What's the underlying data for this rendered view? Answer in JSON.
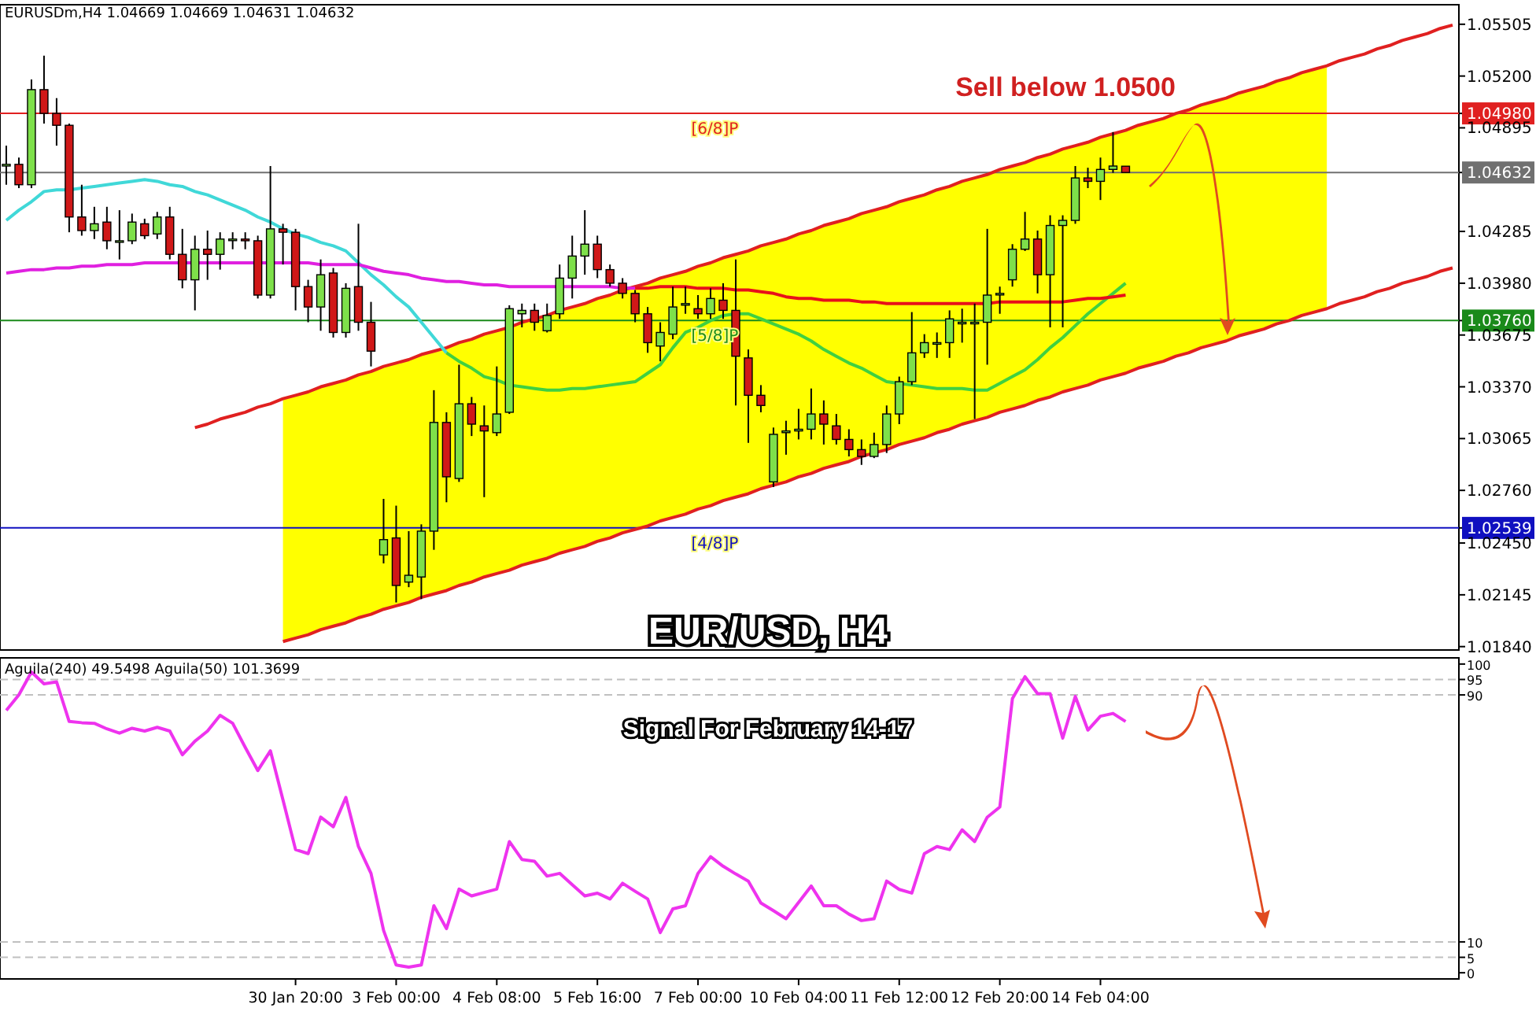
{
  "chart_data": [
    {
      "type": "candlestick",
      "annotations": [
        "EURUSDm,H4 1.04669 1.04669 1.04631 1.04632",
        "Sell below 1.0500"
      ],
      "categories": [
        null,
        null,
        null,
        null,
        null,
        null,
        null,
        null,
        null,
        null,
        null,
        null,
        null,
        null,
        null,
        null,
        null,
        null,
        null,
        null,
        null,
        null,
        null,
        null,
        null,
        null,
        null,
        null,
        null,
        null,
        null,
        null,
        null,
        null,
        null,
        null,
        null,
        null,
        null,
        null,
        null,
        null,
        null,
        null,
        null,
        null,
        null,
        null,
        null,
        null,
        null,
        null,
        null,
        null,
        null,
        null,
        null,
        null,
        null,
        null,
        null,
        null,
        null,
        null,
        null,
        null,
        null,
        null,
        null,
        null,
        null,
        null,
        null,
        null,
        null,
        null,
        null,
        null,
        null,
        null,
        null,
        null,
        null,
        null,
        null,
        null,
        null,
        null,
        null,
        null,
        null,
        null,
        null,
        null,
        null,
        null,
        null,
        null,
        null,
        null,
        null,
        null,
        null,
        null,
        null,
        null,
        null,
        null,
        null,
        null,
        null,
        null,
        null,
        null,
        null,
        null
      ],
      "ohlc": [
        [
          1.0467,
          1.0479,
          1.0456,
          1.0468
        ],
        [
          1.0468,
          1.0472,
          1.0454,
          1.0456
        ],
        [
          1.0456,
          1.0518,
          1.0454,
          1.0512
        ],
        [
          1.0512,
          1.0532,
          1.0492,
          1.0498
        ],
        [
          1.0498,
          1.0507,
          1.0479,
          1.0491
        ],
        [
          1.0491,
          1.0492,
          1.0428,
          1.0437
        ],
        [
          1.0437,
          1.0456,
          1.0426,
          1.0429
        ],
        [
          1.0429,
          1.0443,
          1.0424,
          1.0433
        ],
        [
          1.0434,
          1.0443,
          1.0418,
          1.0423
        ],
        [
          1.0423,
          1.0441,
          1.0412,
          1.0423
        ],
        [
          1.0423,
          1.0439,
          1.0421,
          1.0434
        ],
        [
          1.0433,
          1.0436,
          1.0424,
          1.0426
        ],
        [
          1.0427,
          1.044,
          1.0424,
          1.0437
        ],
        [
          1.0437,
          1.0443,
          1.0412,
          1.0415
        ],
        [
          1.0415,
          1.043,
          1.0395,
          1.04
        ],
        [
          1.04,
          1.0426,
          1.0382,
          1.0418
        ],
        [
          1.0418,
          1.0429,
          1.04,
          1.0415
        ],
        [
          1.0415,
          1.0428,
          1.0406,
          1.0424
        ],
        [
          1.0424,
          1.0428,
          1.0418,
          1.0424
        ],
        [
          1.0424,
          1.0428,
          1.0418,
          1.0423
        ],
        [
          1.0423,
          1.0426,
          1.0389,
          1.0391
        ],
        [
          1.0391,
          1.0467,
          1.0389,
          1.043
        ],
        [
          1.043,
          1.0433,
          1.0409,
          1.0428
        ],
        [
          1.0428,
          1.043,
          1.0382,
          1.0396
        ],
        [
          1.0396,
          1.04,
          1.0375,
          1.0384
        ],
        [
          1.0384,
          1.0412,
          1.037,
          1.0403
        ],
        [
          1.0404,
          1.0407,
          1.0366,
          1.0369
        ],
        [
          1.0369,
          1.0398,
          1.0366,
          1.0395
        ],
        [
          1.0396,
          1.0433,
          1.037,
          1.0375
        ],
        [
          1.0375,
          1.0387,
          1.0349,
          1.0358
        ],
        [
          1.0238,
          1.0271,
          1.0233,
          1.0247
        ],
        [
          1.0248,
          1.0267,
          1.021,
          1.022
        ],
        [
          1.0222,
          1.0252,
          1.0219,
          1.0226
        ],
        [
          1.0225,
          1.0256,
          1.0212,
          1.0252
        ],
        [
          1.0252,
          1.0335,
          1.0241,
          1.0316
        ],
        [
          1.0316,
          1.0322,
          1.0269,
          1.0284
        ],
        [
          1.0283,
          1.035,
          1.0281,
          1.0327
        ],
        [
          1.0327,
          1.0331,
          1.0308,
          1.0315
        ],
        [
          1.0314,
          1.0326,
          1.0272,
          1.0311
        ],
        [
          1.031,
          1.0349,
          1.0308,
          1.0321
        ],
        [
          1.0322,
          1.0385,
          1.0321,
          1.0383
        ],
        [
          1.038,
          1.0386,
          1.0372,
          1.0382
        ],
        [
          1.0382,
          1.0386,
          1.037,
          1.0375
        ],
        [
          1.037,
          1.0386,
          1.0369,
          1.0379
        ],
        [
          1.038,
          1.0409,
          1.0377,
          1.0401
        ],
        [
          1.0401,
          1.0426,
          1.0389,
          1.0414
        ],
        [
          1.0414,
          1.0441,
          1.0403,
          1.0421
        ],
        [
          1.0421,
          1.0426,
          1.0401,
          1.0406
        ],
        [
          1.0406,
          1.0409,
          1.0396,
          1.0398
        ],
        [
          1.0398,
          1.0401,
          1.0389,
          1.0392
        ],
        [
          1.0392,
          1.0394,
          1.0375,
          1.038
        ],
        [
          1.038,
          1.0384,
          1.0357,
          1.0363
        ],
        [
          1.0361,
          1.0375,
          1.0352,
          1.0369
        ],
        [
          1.0368,
          1.0396,
          1.0365,
          1.0384
        ],
        [
          1.0386,
          1.0396,
          1.038,
          1.0386
        ],
        [
          1.0383,
          1.0391,
          1.0377,
          1.038
        ],
        [
          1.038,
          1.0395,
          1.0377,
          1.0389
        ],
        [
          1.0388,
          1.0398,
          1.0377,
          1.0382
        ],
        [
          1.0382,
          1.0412,
          1.0326,
          1.0355
        ],
        [
          1.0354,
          1.0359,
          1.0304,
          1.0332
        ],
        [
          1.0332,
          1.0338,
          1.0322,
          1.0326
        ],
        [
          1.0281,
          1.0313,
          1.0278,
          1.0309
        ],
        [
          1.031,
          1.0317,
          1.0297,
          1.0311
        ],
        [
          1.0311,
          1.0324,
          1.0306,
          1.0312
        ],
        [
          1.0312,
          1.0336,
          1.0306,
          1.0321
        ],
        [
          1.0321,
          1.0329,
          1.0303,
          1.0315
        ],
        [
          1.0314,
          1.0321,
          1.0303,
          1.0306
        ],
        [
          1.0306,
          1.0312,
          1.0296,
          1.03
        ],
        [
          1.03,
          1.0306,
          1.0291,
          1.0296
        ],
        [
          1.0296,
          1.031,
          1.0295,
          1.0303
        ],
        [
          1.0303,
          1.0326,
          1.0298,
          1.0321
        ],
        [
          1.0321,
          1.0343,
          1.0315,
          1.034
        ],
        [
          1.034,
          1.0381,
          1.0338,
          1.0357
        ],
        [
          1.0357,
          1.0368,
          1.0354,
          1.0363
        ],
        [
          1.0363,
          1.0369,
          1.0354,
          1.0363
        ],
        [
          1.0363,
          1.0382,
          1.0354,
          1.0377
        ],
        [
          1.0375,
          1.0383,
          1.0363,
          1.0375
        ],
        [
          1.0375,
          1.0386,
          1.0318,
          1.0375
        ],
        [
          1.0375,
          1.043,
          1.035,
          1.0391
        ],
        [
          1.0392,
          1.0396,
          1.038,
          1.0392
        ],
        [
          1.04,
          1.0421,
          1.0396,
          1.0418
        ],
        [
          1.0418,
          1.044,
          1.0417,
          1.0424
        ],
        [
          1.0424,
          1.0429,
          1.0392,
          1.0403
        ],
        [
          1.0403,
          1.0438,
          1.0372,
          1.0432
        ],
        [
          1.0432,
          1.0438,
          1.0372,
          1.0435
        ],
        [
          1.0435,
          1.0467,
          1.0433,
          1.046
        ],
        [
          1.046,
          1.0466,
          1.0454,
          1.0458
        ],
        [
          1.0458,
          1.0472,
          1.0447,
          1.0465
        ],
        [
          1.0465,
          1.0487,
          1.0463,
          1.0467
        ],
        [
          1.04669,
          1.04669,
          1.04631,
          1.04632
        ],
        null,
        null,
        null,
        null,
        null,
        null,
        null,
        null,
        null,
        null,
        null,
        null,
        null,
        null,
        null,
        null,
        null,
        null,
        null,
        null,
        null,
        null,
        null,
        null,
        null,
        null
      ],
      "ylim": [
        1.0182,
        1.0562
      ],
      "yticks": [
        {
          "value": 1.05505,
          "label": "1.05505"
        },
        {
          "value": 1.052,
          "label": "1.05200"
        },
        {
          "value": 1.0498,
          "label": "1.04980"
        },
        {
          "value": 1.04895,
          "label": "1.04895"
        },
        {
          "value": 1.04632,
          "label": "1.04632"
        },
        {
          "value": 1.04285,
          "label": "1.04285"
        },
        {
          "value": 1.0398,
          "label": "1.03980"
        },
        {
          "value": 1.0376,
          "label": "1.03760"
        },
        {
          "value": 1.03675,
          "label": "1.03675"
        },
        {
          "value": 1.0337,
          "label": "1.03370"
        },
        {
          "value": 1.03065,
          "label": "1.03065"
        },
        {
          "value": 1.0276,
          "label": "1.02760"
        },
        {
          "value": 1.02539,
          "label": "1.02539"
        },
        {
          "value": 1.0245,
          "label": "1.02450"
        },
        {
          "value": 1.02145,
          "label": "1.02145"
        },
        {
          "value": 1.0184,
          "label": "1.01840"
        }
      ],
      "tick_labels": "y",
      "ref_lines": [
        {
          "axis": "y",
          "value": 1.0498,
          "label": "[6/8]P",
          "color": "#e02020"
        },
        {
          "axis": "y",
          "value": 1.04632,
          "label": null,
          "color": "#707070"
        },
        {
          "axis": "y",
          "value": 1.0376,
          "label": "[5/8]P",
          "color": "#1a8a1a"
        },
        {
          "axis": "y",
          "value": 1.02539,
          "label": "[4/8]P",
          "color": "#1010c0"
        }
      ],
      "series": [
        {
          "type": "line",
          "color": "#e02020",
          "values": [
            null,
            null,
            null,
            null,
            null,
            null,
            null,
            null,
            null,
            null,
            null,
            null,
            null,
            null,
            null,
            1.0313,
            1.0315,
            1.0318,
            1.032,
            1.0322,
            1.0325,
            1.0327,
            1.033,
            1.0332,
            1.0334,
            1.0337,
            1.0339,
            1.0341,
            1.0344,
            1.0346,
            1.0349,
            1.0351,
            1.0353,
            1.0356,
            1.0358,
            1.036,
            1.0363,
            1.0365,
            1.0368,
            1.037,
            1.0372,
            1.0375,
            1.0377,
            1.0379,
            1.0382,
            1.0384,
            1.0386,
            1.0389,
            1.0391,
            1.0394,
            1.0396,
            1.0398,
            1.0401,
            1.0403,
            1.0405,
            1.0408,
            1.041,
            1.0413,
            1.0415,
            1.0417,
            1.042,
            1.0422,
            1.0424,
            1.0427,
            1.0429,
            1.0432,
            1.0434,
            1.0436,
            1.0439,
            1.0441,
            1.0443,
            1.0446,
            1.0448,
            1.045,
            1.0453,
            1.0455,
            1.0458,
            1.046,
            1.0462,
            1.0465,
            1.0467,
            1.0469,
            1.0472,
            1.0474,
            1.0477,
            1.0479,
            1.0481,
            1.0484,
            1.0486,
            1.0488,
            1.0491,
            1.0493,
            1.0495,
            1.0498,
            1.05,
            1.0503,
            1.0505,
            1.0507,
            1.051,
            1.0512,
            1.0514,
            1.0517,
            1.0519,
            1.0522,
            1.0524,
            1.0526,
            1.0529,
            1.0531,
            1.0533,
            1.0536,
            1.0538,
            1.0541,
            1.0543,
            1.0545,
            1.0548,
            1.055
          ]
        },
        {
          "type": "line",
          "color": "#e02020",
          "upper": [
            null,
            null,
            null,
            null,
            null,
            null,
            null,
            null,
            null,
            null,
            null,
            null,
            null,
            null,
            null,
            null,
            null,
            null,
            null,
            null,
            null,
            null,
            1.033,
            1.0332,
            1.0334,
            1.0337,
            1.0339,
            1.0341,
            1.0344,
            1.0346,
            1.0349,
            1.0351,
            1.0353,
            1.0356,
            1.0358,
            1.036,
            1.0363,
            1.0365,
            1.0368,
            1.037,
            1.0372,
            1.0375,
            1.0377,
            1.0379,
            1.0382,
            1.0384,
            1.0386,
            1.0389,
            1.0391,
            1.0394,
            1.0396,
            1.0398,
            1.0401,
            1.0403,
            1.0405,
            1.0408,
            1.041,
            1.0413,
            1.0415,
            1.0417,
            1.042,
            1.0422,
            1.0424,
            1.0427,
            1.0429,
            1.0432,
            1.0434,
            1.0436,
            1.0439,
            1.0441,
            1.0443,
            1.0446,
            1.0448,
            1.045,
            1.0453,
            1.0455,
            1.0458,
            1.046,
            1.0462,
            1.0465,
            1.0467,
            1.0469,
            1.0472,
            1.0474,
            1.0477,
            1.0479,
            1.0481,
            1.0484,
            1.0486,
            1.0488,
            1.0491,
            1.0493,
            1.0495,
            1.0498,
            1.05,
            1.0503,
            1.0505,
            1.0507,
            1.051,
            1.0512,
            1.0514,
            1.0517,
            1.0519,
            1.0522,
            1.0524,
            1.0526,
            null,
            null,
            null,
            null,
            null,
            null,
            null,
            null,
            null,
            null
          ],
          "lower": [
            null,
            null,
            null,
            null,
            null,
            null,
            null,
            null,
            null,
            null,
            null,
            null,
            null,
            null,
            null,
            null,
            null,
            null,
            null,
            null,
            null,
            null,
            1.0187,
            1.0189,
            1.0191,
            1.0194,
            1.0196,
            1.0198,
            1.0201,
            1.0203,
            1.0206,
            1.0208,
            1.021,
            1.0213,
            1.0215,
            1.0217,
            1.022,
            1.0222,
            1.0225,
            1.0227,
            1.0229,
            1.0232,
            1.0234,
            1.0236,
            1.0239,
            1.0241,
            1.0243,
            1.0246,
            1.0248,
            1.0251,
            1.0253,
            1.0255,
            1.0258,
            1.026,
            1.0262,
            1.0265,
            1.0267,
            1.027,
            1.0272,
            1.0274,
            1.0277,
            1.0279,
            1.0281,
            1.0284,
            1.0286,
            1.0289,
            1.0291,
            1.0293,
            1.0296,
            1.0298,
            1.03,
            1.0303,
            1.0305,
            1.0307,
            1.031,
            1.0312,
            1.0315,
            1.0317,
            1.0319,
            1.0322,
            1.0324,
            1.0326,
            1.0329,
            1.0331,
            1.0334,
            1.0336,
            1.0338,
            1.0341,
            1.0343,
            1.0345,
            1.0348,
            1.035,
            1.0352,
            1.0355,
            1.0357,
            1.036,
            1.0362,
            1.0364,
            1.0367,
            1.0369,
            1.0371,
            1.0374,
            1.0376,
            1.0379,
            1.0381,
            1.0383,
            null,
            null,
            null,
            null,
            null,
            null,
            null,
            null,
            null,
            null
          ],
          "values": [
            null,
            null,
            null,
            null,
            null,
            null,
            null,
            null,
            null,
            null,
            null,
            null,
            null,
            null,
            null,
            null,
            null,
            null,
            null,
            null,
            null,
            null,
            1.0187,
            1.0189,
            1.0191,
            1.0194,
            1.0196,
            1.0198,
            1.0201,
            1.0203,
            1.0206,
            1.0208,
            1.021,
            1.0213,
            1.0215,
            1.0217,
            1.022,
            1.0222,
            1.0225,
            1.0227,
            1.0229,
            1.0232,
            1.0234,
            1.0236,
            1.0239,
            1.0241,
            1.0243,
            1.0246,
            1.0248,
            1.0251,
            1.0253,
            1.0255,
            1.0258,
            1.026,
            1.0262,
            1.0265,
            1.0267,
            1.027,
            1.0272,
            1.0274,
            1.0277,
            1.0279,
            1.0281,
            1.0284,
            1.0286,
            1.0289,
            1.0291,
            1.0293,
            1.0296,
            1.0298,
            1.03,
            1.0303,
            1.0305,
            1.0307,
            1.031,
            1.0312,
            1.0315,
            1.0317,
            1.0319,
            1.0322,
            1.0324,
            1.0326,
            1.0329,
            1.0331,
            1.0334,
            1.0336,
            1.0338,
            1.0341,
            1.0343,
            1.0345,
            1.0348,
            1.035,
            1.0352,
            1.0355,
            1.0357,
            1.036,
            1.0362,
            1.0364,
            1.0367,
            1.0369,
            1.0371,
            1.0374,
            1.0376,
            1.0379,
            1.0381,
            1.0383,
            1.0386,
            1.0388,
            1.039,
            1.0393,
            1.0395,
            1.0398,
            1.04,
            1.0402,
            1.0405,
            1.0407
          ]
        },
        {
          "type": "line",
          "color": "#40d8d8",
          "values": [
            1.0435,
            1.0441,
            1.0446,
            1.0452,
            1.0453,
            1.0453,
            1.0454,
            1.0455,
            1.0456,
            1.0457,
            1.0458,
            1.0459,
            1.0458,
            1.0456,
            1.0455,
            1.0452,
            1.045,
            1.0447,
            1.0444,
            1.0441,
            1.0437,
            1.0434,
            1.043,
            1.0427,
            1.0425,
            1.0422,
            1.042,
            1.0417,
            1.041,
            1.0403,
            1.0397,
            1.039,
            1.0384,
            1.0375,
            1.0366,
            1.0357,
            null,
            null,
            null,
            null,
            null,
            null,
            null,
            null,
            null,
            null,
            null,
            null,
            null,
            null,
            null,
            null,
            null,
            null,
            null,
            null,
            null,
            null,
            null,
            null,
            null,
            null,
            null,
            null,
            null,
            null,
            null,
            null,
            null,
            null,
            null,
            null,
            null,
            null,
            null,
            null,
            null,
            null,
            null,
            null,
            null,
            null,
            null,
            null,
            null,
            null,
            null,
            null,
            null,
            null,
            null,
            null,
            null,
            null,
            null,
            null,
            null,
            null,
            null,
            null,
            null,
            null,
            null,
            null,
            null,
            null,
            null,
            null,
            null,
            null,
            null,
            null,
            null,
            null,
            null,
            null
          ]
        },
        {
          "type": "line",
          "color": "#40d040",
          "values": [
            null,
            null,
            null,
            null,
            null,
            null,
            null,
            null,
            null,
            null,
            null,
            null,
            null,
            null,
            null,
            null,
            null,
            null,
            null,
            null,
            null,
            null,
            null,
            null,
            null,
            null,
            null,
            null,
            null,
            null,
            null,
            null,
            null,
            null,
            null,
            1.0357,
            1.0352,
            1.0348,
            1.0343,
            1.0341,
            1.0338,
            1.0337,
            1.0336,
            1.0335,
            1.0335,
            1.0336,
            1.0336,
            1.0337,
            1.0338,
            1.0339,
            1.034,
            1.0345,
            1.035,
            1.036,
            1.0369,
            1.0372,
            1.0376,
            1.0379,
            1.038,
            1.038,
            1.0377,
            1.0374,
            1.0371,
            1.0368,
            1.0364,
            1.0359,
            1.0355,
            1.0351,
            1.0348,
            1.0344,
            1.034,
            1.0339,
            1.0338,
            1.0337,
            1.0336,
            1.0336,
            1.0336,
            1.0335,
            1.0335,
            1.0339,
            1.0343,
            1.0347,
            1.0353,
            1.036,
            1.0366,
            1.0373,
            1.038,
            1.0386,
            1.0392,
            1.0398,
            null,
            null,
            null,
            null,
            null,
            null,
            null,
            null,
            null,
            null,
            null,
            null,
            null,
            null,
            null,
            null,
            null,
            null,
            null,
            null,
            null,
            null,
            null,
            null,
            null,
            null
          ]
        },
        {
          "type": "line",
          "color": "#e020e0",
          "values": [
            1.0404,
            1.0405,
            1.0406,
            1.0406,
            1.0407,
            1.0407,
            1.0408,
            1.0408,
            1.0409,
            1.0409,
            1.0409,
            1.041,
            1.041,
            1.041,
            1.041,
            1.041,
            1.041,
            1.041,
            1.041,
            1.041,
            1.041,
            1.041,
            1.041,
            1.041,
            1.041,
            1.0409,
            1.0409,
            1.0409,
            1.0409,
            1.0407,
            1.0405,
            1.0404,
            1.0403,
            1.0401,
            1.04,
            1.0399,
            1.0399,
            1.0398,
            1.0397,
            1.0397,
            1.0396,
            1.0396,
            1.0396,
            1.0396,
            1.0396,
            1.0396,
            1.0396,
            1.0396,
            1.0396,
            1.0395,
            1.0395,
            null,
            null,
            null,
            null,
            null,
            null,
            null,
            null,
            null,
            null,
            null,
            null,
            null,
            null,
            null,
            null,
            null,
            null,
            null,
            null,
            null,
            null,
            null,
            null,
            null,
            null,
            null,
            null,
            null,
            null,
            null,
            null,
            null,
            null,
            null,
            null,
            null,
            null,
            null,
            null,
            null,
            null,
            null,
            null,
            null,
            null,
            null,
            null,
            null,
            null,
            null,
            null,
            null,
            null,
            null,
            null,
            null,
            null,
            null,
            null,
            null,
            null,
            null,
            null,
            null
          ]
        },
        {
          "type": "line",
          "color": "#e8101a",
          "values": [
            null,
            null,
            null,
            null,
            null,
            null,
            null,
            null,
            null,
            null,
            null,
            null,
            null,
            null,
            null,
            null,
            null,
            null,
            null,
            null,
            null,
            null,
            null,
            null,
            null,
            null,
            null,
            null,
            null,
            null,
            null,
            null,
            null,
            null,
            null,
            null,
            null,
            null,
            null,
            null,
            null,
            null,
            null,
            null,
            null,
            null,
            null,
            null,
            null,
            null,
            1.0395,
            1.0395,
            1.0396,
            1.0396,
            1.0396,
            1.0395,
            1.0395,
            1.0395,
            1.0394,
            1.0394,
            1.0393,
            1.0392,
            1.039,
            1.0389,
            1.0389,
            1.0388,
            1.0388,
            1.0388,
            1.0387,
            1.0387,
            1.0386,
            1.0386,
            1.0386,
            1.0386,
            1.0386,
            1.0386,
            1.0386,
            1.0386,
            1.0386,
            1.0387,
            1.0387,
            1.0387,
            1.0387,
            1.0387,
            1.0387,
            1.0388,
            1.0389,
            1.0389,
            1.039,
            1.0391,
            null,
            null,
            null,
            null,
            null,
            null,
            null,
            null,
            null,
            null,
            null,
            null,
            null,
            null,
            null,
            null,
            null,
            null,
            null,
            null,
            null,
            null,
            null,
            null,
            null,
            null
          ]
        }
      ]
    },
    {
      "type": "line",
      "title": "EUR/USD, H4",
      "subtitle": "Signal For February 14-17",
      "annotations": [
        "Aguila(240) 49.5498  Aguila(50) 101.3699"
      ],
      "categories": [
        null,
        null,
        null,
        null,
        null,
        null,
        null,
        null,
        null,
        null,
        null,
        null,
        null,
        null,
        null,
        null,
        null,
        null,
        null,
        null,
        null,
        null,
        null,
        "30 Jan 20:00",
        null,
        null,
        null,
        null,
        null,
        null,
        null,
        "3 Feb 00:00",
        null,
        null,
        null,
        null,
        null,
        null,
        null,
        "4 Feb 08:00",
        null,
        null,
        null,
        null,
        null,
        null,
        null,
        "5 Feb 16:00",
        null,
        null,
        null,
        null,
        null,
        null,
        null,
        "7 Feb 00:00",
        null,
        null,
        null,
        null,
        null,
        null,
        null,
        "10 Feb 04:00",
        null,
        null,
        null,
        null,
        null,
        null,
        null,
        "11 Feb 12:00",
        null,
        null,
        null,
        null,
        null,
        null,
        null,
        "12 Feb 20:00",
        null,
        null,
        null,
        null,
        null,
        null,
        null,
        "14 Feb 04:00",
        null,
        null,
        null,
        null,
        null,
        null,
        null,
        null,
        null,
        null,
        null,
        null,
        null,
        null,
        null,
        null,
        null,
        null,
        null,
        null,
        null,
        null,
        null,
        null,
        null,
        null,
        null,
        null
      ],
      "ylim": [
        -2,
        102
      ],
      "yticks": [
        0,
        5,
        10,
        90,
        95,
        100
      ],
      "ref_lines": [
        {
          "axis": "y",
          "value": 95,
          "label": null,
          "color": "#c0c0c0",
          "line_style": "dashed"
        },
        {
          "axis": "y",
          "value": 90,
          "label": null,
          "color": "#c0c0c0",
          "line_style": "dashed"
        },
        {
          "axis": "y",
          "value": 10,
          "label": null,
          "color": "#c0c0c0",
          "line_style": "dashed"
        },
        {
          "axis": "y",
          "value": 5,
          "label": null,
          "color": "#c0c0c0",
          "line_style": "dashed"
        }
      ],
      "series": [
        {
          "color": "#ee33ee",
          "values": [
            85,
            90,
            97.4,
            93.6,
            94.2,
            81.4,
            81,
            80.8,
            79,
            77.6,
            79.2,
            78.3,
            79.5,
            78.3,
            70.6,
            75,
            78.3,
            83.4,
            80.8,
            73,
            65.5,
            71.9,
            56,
            39.9,
            38.6,
            50.4,
            47.3,
            56.8,
            40.9,
            32.2,
            13.7,
            2.5,
            1.8,
            2.5,
            21.7,
            14.3,
            27.1,
            24.9,
            26,
            27.1,
            42.5,
            36.7,
            36.1,
            31.3,
            32.2,
            28.5,
            24.9,
            25.8,
            23.9,
            29,
            26.4,
            23.9,
            13,
            20.7,
            21.7,
            32.2,
            37.6,
            34.5,
            32,
            29.7,
            22.6,
            20.1,
            17.5,
            22.8,
            28.1,
            21.7,
            21.7,
            19,
            16.9,
            17.5,
            29.7,
            27,
            25.8,
            38.6,
            40.9,
            39.9,
            46.3,
            42.5,
            50.4,
            53.7,
            88.8,
            95.9,
            90.4,
            90.4,
            76,
            89.5,
            78.6,
            83.1,
            84,
            81.4,
            null,
            null,
            null,
            null,
            null,
            null,
            null,
            null,
            null,
            null,
            null,
            null,
            null,
            null,
            null,
            null,
            null,
            null,
            null,
            null,
            null,
            null,
            null,
            null,
            null,
            null
          ]
        }
      ]
    }
  ]
}
